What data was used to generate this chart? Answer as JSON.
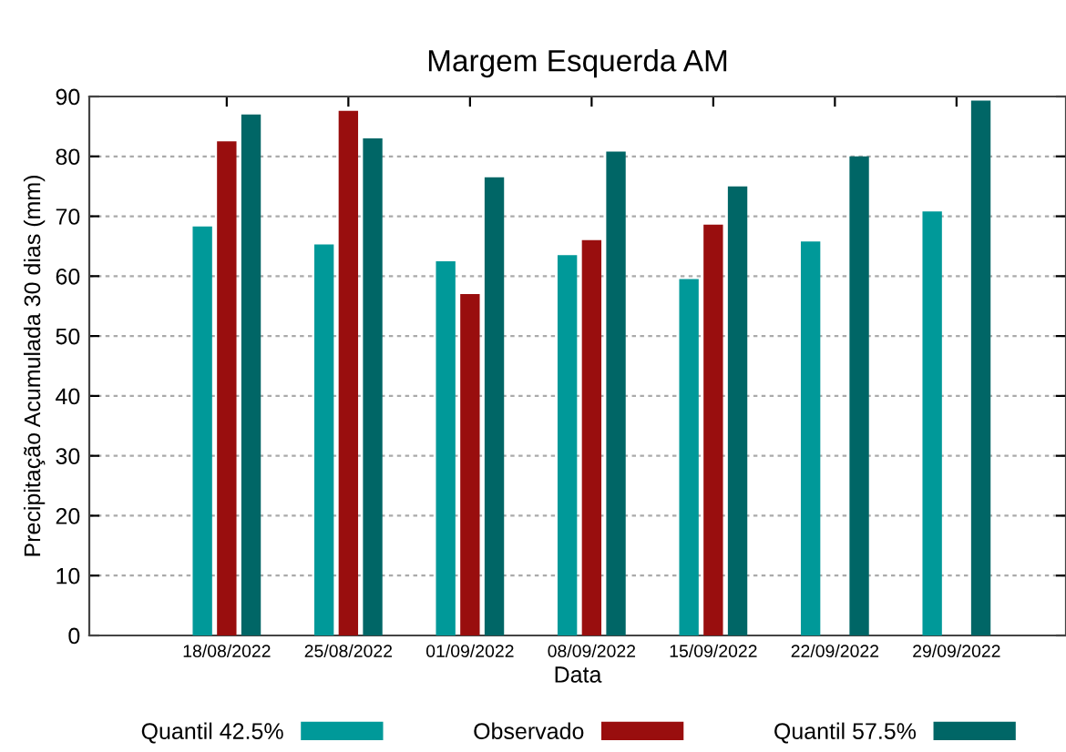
{
  "chart_data": {
    "type": "bar",
    "title": "Margem Esquerda AM",
    "xlabel": "Data",
    "ylabel": "Precipitação Acumulada 30 dias (mm)",
    "categories": [
      "18/08/2022",
      "25/08/2022",
      "01/09/2022",
      "08/09/2022",
      "15/09/2022",
      "22/09/2022",
      "29/09/2022"
    ],
    "series": [
      {
        "name": "Quantil 42.5%",
        "color": "#009999",
        "values": [
          68.3,
          65.3,
          62.5,
          63.5,
          59.5,
          65.8,
          70.8
        ]
      },
      {
        "name": "Observado",
        "color": "#990e0e",
        "values": [
          82.5,
          87.6,
          57,
          66,
          68.6,
          null,
          null
        ]
      },
      {
        "name": "Quantil 57.5%",
        "color": "#006666",
        "values": [
          87,
          83,
          76.5,
          80.8,
          75,
          80,
          89.3
        ]
      }
    ],
    "ylim": [
      0,
      90
    ],
    "yticks": [
      0,
      10,
      20,
      30,
      40,
      50,
      60,
      70,
      80,
      90
    ],
    "grid": "y",
    "legend": "bottom"
  }
}
